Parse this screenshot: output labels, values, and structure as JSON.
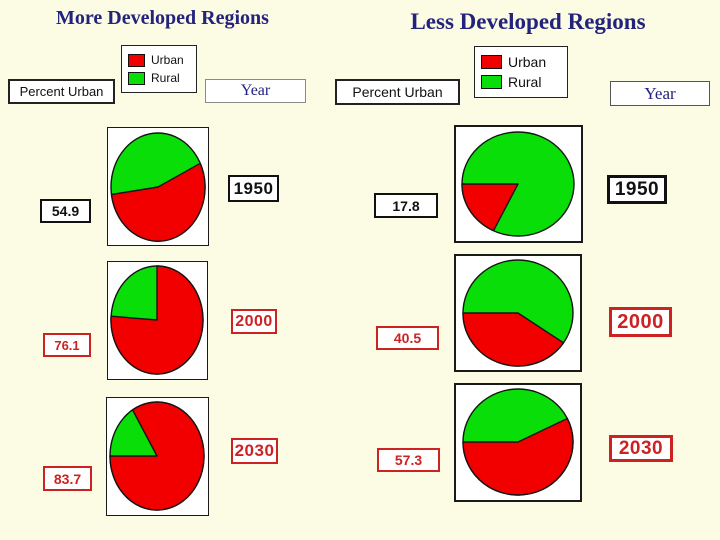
{
  "slide_bg": "#FCFBE3",
  "colors": {
    "urban_red": "#F20000",
    "rural_green": "#09DE09",
    "label_red": "#CC2222",
    "navy": "#23237E",
    "outline": "#141414"
  },
  "left": {
    "title": "More Developed Regions",
    "legend": {
      "urban": "Urban",
      "rural": "Rural"
    },
    "percent_urban_label": "Percent Urban",
    "year_label": "Year",
    "rows": [
      {
        "value": "54.9",
        "year": "1950"
      },
      {
        "value": "76.1",
        "year": "2000"
      },
      {
        "value": "83.7",
        "year": "2030"
      }
    ]
  },
  "right": {
    "title": "Less Developed Regions",
    "legend": {
      "urban": "Urban",
      "rural": "Rural"
    },
    "percent_urban_label": "Percent Urban",
    "year_label": "Year",
    "rows": [
      {
        "value": "17.8",
        "year": "1950"
      },
      {
        "value": "40.5",
        "year": "2000"
      },
      {
        "value": "57.3",
        "year": "2030"
      }
    ]
  },
  "chart_data": [
    {
      "type": "pie",
      "title": "More Developed Regions",
      "legend": [
        "Urban",
        "Rural"
      ],
      "legend_colors": {
        "Urban": "#F20000",
        "Rural": "#09DE09"
      },
      "rows": [
        {
          "year": "1950",
          "urban_pct": 54.9,
          "rural_pct": 45.1,
          "red_arc_deg": [
            -26,
            172
          ]
        },
        {
          "year": "2000",
          "urban_pct": 76.1,
          "rural_pct": 23.9,
          "red_arc_deg": [
            -90,
            184
          ]
        },
        {
          "year": "2030",
          "urban_pct": 83.7,
          "rural_pct": 16.3,
          "red_arc_deg": [
            -121.3,
            180
          ]
        }
      ]
    },
    {
      "type": "pie",
      "title": "Less Developed Regions",
      "legend": [
        "Urban",
        "Rural"
      ],
      "legend_colors": {
        "Urban": "#F20000",
        "Rural": "#09DE09"
      },
      "rows": [
        {
          "year": "1950",
          "urban_pct": 17.8,
          "rural_pct": 82.2,
          "red_arc_deg": [
            116,
            180
          ]
        },
        {
          "year": "2000",
          "urban_pct": 40.5,
          "rural_pct": 59.5,
          "red_arc_deg": [
            34.2,
            180
          ]
        },
        {
          "year": "2030",
          "urban_pct": 57.3,
          "rural_pct": 42.7,
          "red_arc_deg": [
            -26.3,
            180
          ]
        }
      ]
    }
  ]
}
